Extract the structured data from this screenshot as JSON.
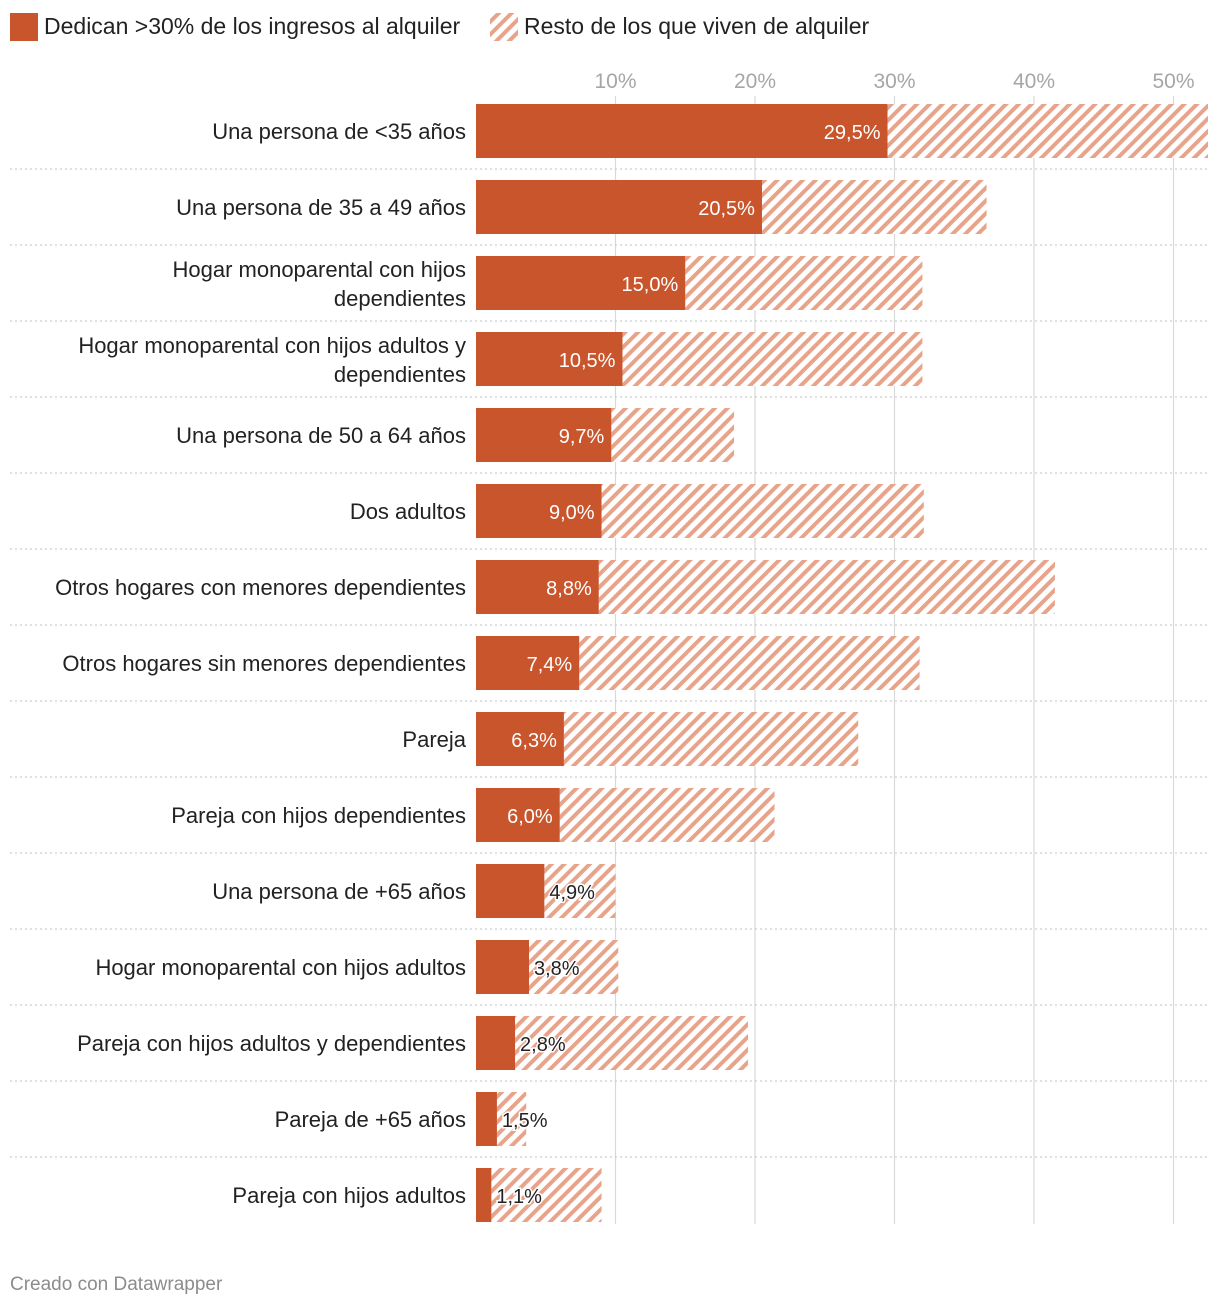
{
  "colors": {
    "primary": "#c9552c",
    "rest": "#e8a48b",
    "grid": "#d9d9d9",
    "separator": "#cccccc"
  },
  "legend": {
    "primary_label": "Dedican >30% de los ingresos al alquiler",
    "rest_label": "Resto de los que viven de alquiler"
  },
  "footer": {
    "credit": "Creado con Datawrapper"
  },
  "chart_data": {
    "type": "bar",
    "orientation": "horizontal",
    "stacked": true,
    "x_unit": "%",
    "xlim": [
      0,
      52.5
    ],
    "x_ticks": [
      10,
      20,
      30,
      40,
      50
    ],
    "x_tick_labels": [
      "10%",
      "20%",
      "30%",
      "40%",
      "50%"
    ],
    "x_axis_position": "top",
    "grid": true,
    "legend_position": "top-left",
    "categories": [
      "Una persona de <35 años",
      "Una persona de 35 a 49 años",
      "Hogar monoparental con hijos dependientes",
      "Hogar monoparental con hijos adultos y dependientes",
      "Una persona de 50 a 64 años",
      "Dos adultos",
      "Otros hogares con menores dependientes",
      "Otros hogares sin menores dependientes",
      "Pareja",
      "Pareja con hijos dependientes",
      "Una persona de +65 años",
      "Hogar monoparental con hijos adultos",
      "Pareja con hijos adultos y dependientes",
      "Pareja de +65 años",
      "Pareja con hijos adultos"
    ],
    "category_lines": [
      [
        "Una persona de <35 años"
      ],
      [
        "Una persona de 35 a 49 años"
      ],
      [
        "Hogar monoparental con hijos",
        "dependientes"
      ],
      [
        "Hogar monoparental con hijos adultos y",
        "dependientes"
      ],
      [
        "Una persona de 50 a 64 años"
      ],
      [
        "Dos adultos"
      ],
      [
        "Otros hogares con menores dependientes"
      ],
      [
        "Otros hogares sin menores dependientes"
      ],
      [
        "Pareja"
      ],
      [
        "Pareja con hijos dependientes"
      ],
      [
        "Una persona de +65 años"
      ],
      [
        "Hogar monoparental con hijos adultos"
      ],
      [
        "Pareja con hijos adultos y dependientes"
      ],
      [
        "Pareja de +65 años"
      ],
      [
        "Pareja con hijos adultos"
      ]
    ],
    "series": [
      {
        "name": "Dedican >30% de los ingresos al alquiler",
        "values": [
          29.5,
          20.5,
          15.0,
          10.5,
          9.7,
          9.0,
          8.8,
          7.4,
          6.3,
          6.0,
          4.9,
          3.8,
          2.8,
          1.5,
          1.1
        ],
        "labels": [
          "29,5%",
          "20,5%",
          "15,0%",
          "10,5%",
          "9,7%",
          "9,0%",
          "8,8%",
          "7,4%",
          "6,3%",
          "6,0%",
          "4,9%",
          "3,8%",
          "2,8%",
          "1,5%",
          "1,1%"
        ]
      },
      {
        "name": "Resto de los que viven de alquiler",
        "values": [
          23.0,
          16.1,
          17.0,
          21.5,
          8.8,
          23.1,
          32.7,
          24.4,
          21.1,
          15.4,
          5.1,
          6.4,
          16.7,
          2.1,
          7.9
        ]
      }
    ]
  }
}
